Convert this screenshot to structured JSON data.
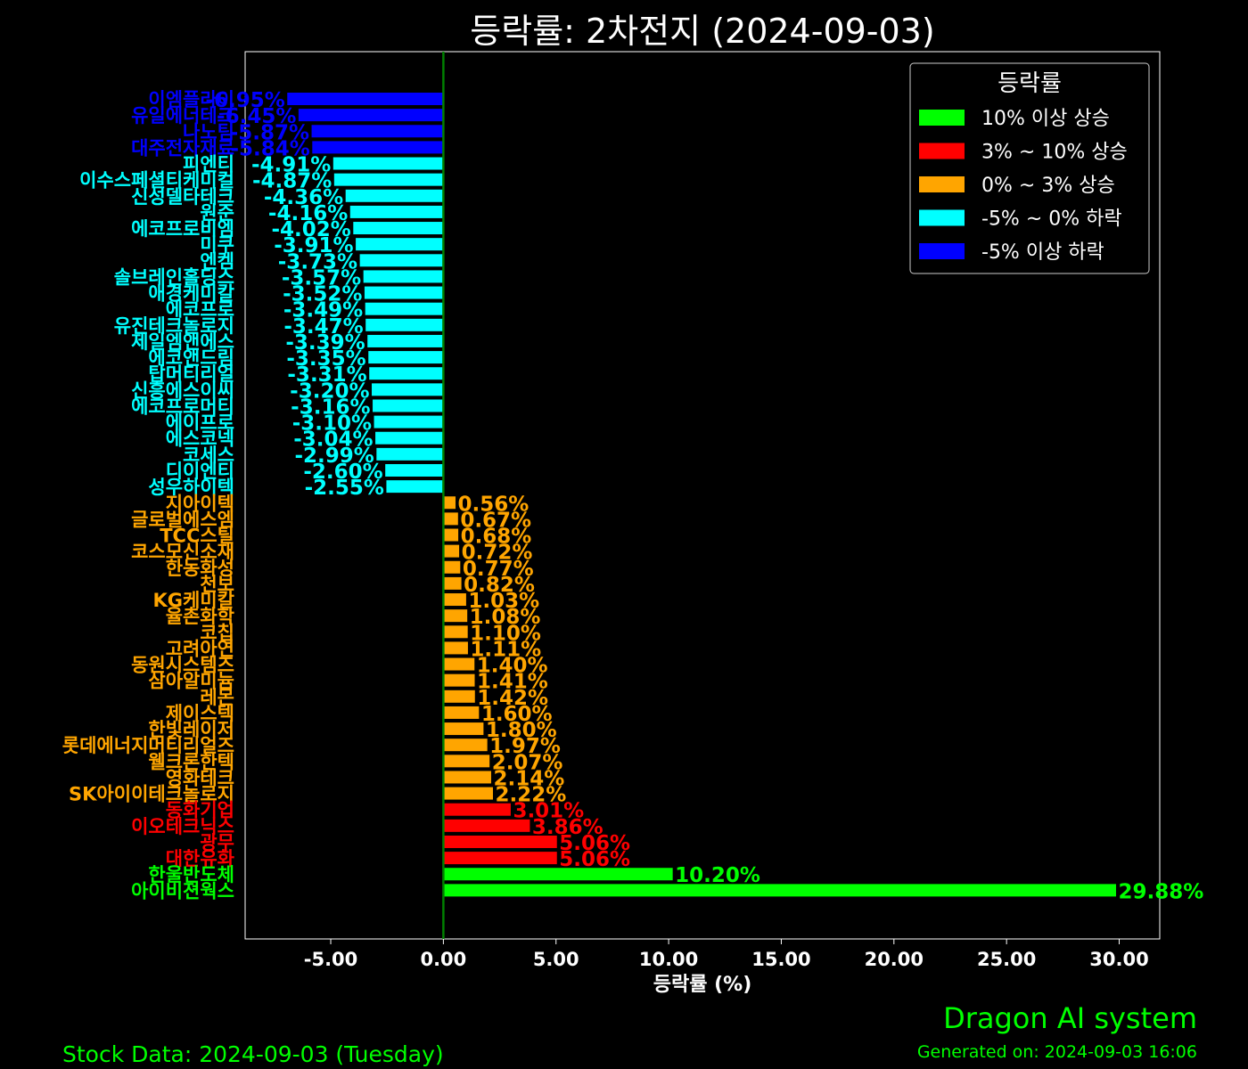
{
  "title": "등락률: 2차전지 (2024-09-03)",
  "footer": {
    "brand": "Dragon AI system",
    "generated": "Generated on: 2024-09-03 16:06",
    "stock_data": "Stock Data: 2024-09-03 (Tuesday)"
  },
  "legend": {
    "title": "등락률",
    "items": [
      {
        "label": "10% 이상 상승",
        "color": "#00ff00"
      },
      {
        "label": "3% ~ 10% 상승",
        "color": "#ff0000"
      },
      {
        "label": "0% ~ 3% 상승",
        "color": "#ffa500"
      },
      {
        "label": "-5% ~ 0% 하락",
        "color": "#00ffff"
      },
      {
        "label": "-5% 이상 하락",
        "color": "#0000ff"
      }
    ]
  },
  "chart_data": {
    "type": "bar",
    "orientation": "horizontal",
    "xlabel": "등락률 (%)",
    "ylabel": "",
    "xlim": [
      -8.8,
      31.8
    ],
    "xticks": [
      "-5.00",
      "0.00",
      "5.00",
      "10.00",
      "15.00",
      "20.00",
      "25.00",
      "30.00"
    ],
    "xtick_values": [
      -5,
      0,
      5,
      10,
      15,
      20,
      25,
      30
    ],
    "zero_line_color": "#008000",
    "grid": false,
    "legend_position": "top-right",
    "categories": [
      "이엠플라이",
      "유일에너테크",
      "나노팀",
      "대주전자재료",
      "피엔티",
      "이수스페셜티케미컬",
      "신성델타테크",
      "원준",
      "에코프로비엠",
      "미쿠",
      "엔켐",
      "솔브레인홀딩스",
      "애경케미칼",
      "에코프로",
      "유진테크놀로지",
      "제일엠앤에스",
      "에코앤드림",
      "탑머티리얼",
      "신흥에스이씨",
      "에코프로머티",
      "에이프로",
      "에스코넥",
      "코세스",
      "디이엔티",
      "성우하이텍",
      "지아이텍",
      "글로벌에스엠",
      "TCC스틸",
      "코스모신소재",
      "한농화성",
      "천보",
      "KG케미칼",
      "율촌화학",
      "코칩",
      "고려아연",
      "동원시스템즈",
      "삼아알미늄",
      "레몬",
      "제이스텍",
      "한빛레이저",
      "롯데에너지머티리얼즈",
      "웰크론한텍",
      "영화테크",
      "SK아이이테크놀로지",
      "동화기업",
      "이오테크닉스",
      "광무",
      "대한유화",
      "한울반도체",
      "아이비젼웍스"
    ],
    "values": [
      -6.95,
      -6.45,
      -5.87,
      -5.84,
      -4.91,
      -4.87,
      -4.36,
      -4.16,
      -4.02,
      -3.91,
      -3.73,
      -3.57,
      -3.52,
      -3.49,
      -3.47,
      -3.39,
      -3.35,
      -3.31,
      -3.2,
      -3.16,
      -3.1,
      -3.04,
      -2.99,
      -2.6,
      -2.55,
      0.56,
      0.67,
      0.68,
      0.72,
      0.77,
      0.82,
      1.03,
      1.08,
      1.1,
      1.11,
      1.4,
      1.41,
      1.42,
      1.6,
      1.8,
      1.97,
      2.07,
      2.14,
      2.22,
      3.01,
      3.86,
      5.06,
      5.06,
      10.2,
      29.88
    ],
    "value_labels": [
      "-6.95%",
      "-6.45%",
      "-5.87%",
      "-5.84%",
      "-4.91%",
      "-4.87%",
      "-4.36%",
      "-4.16%",
      "-4.02%",
      "-3.91%",
      "-3.73%",
      "-3.57%",
      "-3.52%",
      "-3.49%",
      "-3.47%",
      "-3.39%",
      "-3.35%",
      "-3.31%",
      "-3.20%",
      "-3.16%",
      "-3.10%",
      "-3.04%",
      "-2.99%",
      "-2.60%",
      "-2.55%",
      "0.56%",
      "0.67%",
      "0.68%",
      "0.72%",
      "0.77%",
      "0.82%",
      "1.03%",
      "1.08%",
      "1.10%",
      "1.11%",
      "1.40%",
      "1.41%",
      "1.42%",
      "1.60%",
      "1.80%",
      "1.97%",
      "2.07%",
      "2.14%",
      "2.22%",
      "3.01%",
      "3.86%",
      "5.06%",
      "5.06%",
      "10.20%",
      "29.88%"
    ]
  }
}
